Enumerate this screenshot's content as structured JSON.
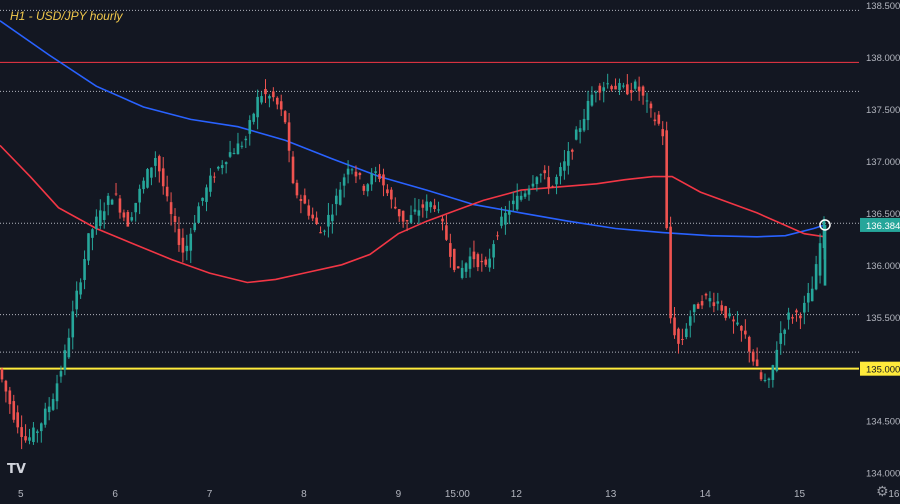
{
  "chart_data": {
    "type": "candlestick",
    "title": "H1 - USD/JPY hourly",
    "x_ticks": [
      {
        "label": "5",
        "day": 5
      },
      {
        "label": "6",
        "day": 6
      },
      {
        "label": "7",
        "day": 7
      },
      {
        "label": "8",
        "day": 8
      },
      {
        "label": "9",
        "day": 9
      },
      {
        "label": "15:00",
        "day": 9.625
      },
      {
        "label": "12",
        "day": 10.25
      },
      {
        "label": "13",
        "day": 11.25
      },
      {
        "label": "14",
        "day": 12.25
      },
      {
        "label": "15",
        "day": 13.25
      },
      {
        "label": "16",
        "day": 14.25
      }
    ],
    "y_ticks": [
      134.0,
      134.5,
      135.0,
      135.5,
      136.0,
      136.5,
      137.0,
      137.5,
      138.0,
      138.5
    ],
    "ylim": [
      133.88,
      138.55
    ],
    "xlim": [
      4.78,
      13.88
    ],
    "y_tick_labels": [
      "134.000",
      "134.500",
      "135.000",
      "135.500",
      "136.000",
      "136.500",
      "137.000",
      "137.500",
      "138.000",
      "138.500"
    ],
    "horizontal_lines": [
      {
        "name": "resistance",
        "value": 137.95,
        "color": "#f23645",
        "style": "solid"
      },
      {
        "name": "support",
        "value": 135.0,
        "color": "#ffeb3b",
        "style": "solid",
        "label": "135.000"
      },
      {
        "name": "level-138.45",
        "value": 138.45,
        "color": "#b2b5be",
        "style": "dotted"
      },
      {
        "name": "level-137.67",
        "value": 137.67,
        "color": "#b2b5be",
        "style": "dotted"
      },
      {
        "name": "level-136.40",
        "value": 136.4,
        "color": "#b2b5be",
        "style": "dotted"
      },
      {
        "name": "level-135.52",
        "value": 135.52,
        "color": "#b2b5be",
        "style": "dotted"
      },
      {
        "name": "level-135.16",
        "value": 135.16,
        "color": "#b2b5be",
        "style": "dotted"
      }
    ],
    "last_price": {
      "value": 136.384,
      "label": "136.384",
      "color": "#26a69a"
    },
    "candle_colors": {
      "up": "#26a69a",
      "down": "#ef5350"
    },
    "candle_keyframes": [
      [
        4.78,
        135.0
      ],
      [
        4.95,
        134.55
      ],
      [
        5.08,
        134.3
      ],
      [
        5.2,
        134.42
      ],
      [
        5.35,
        134.7
      ],
      [
        5.48,
        135.1
      ],
      [
        5.6,
        135.65
      ],
      [
        5.75,
        136.3
      ],
      [
        5.9,
        136.55
      ],
      [
        6.0,
        136.7
      ],
      [
        6.15,
        136.4
      ],
      [
        6.3,
        136.75
      ],
      [
        6.45,
        137.05
      ],
      [
        6.6,
        136.5
      ],
      [
        6.75,
        136.1
      ],
      [
        6.9,
        136.55
      ],
      [
        7.05,
        136.85
      ],
      [
        7.2,
        137.05
      ],
      [
        7.4,
        137.2
      ],
      [
        7.55,
        137.65
      ],
      [
        7.7,
        137.6
      ],
      [
        7.82,
        137.4
      ],
      [
        7.9,
        136.75
      ],
      [
        8.05,
        136.55
      ],
      [
        8.2,
        136.3
      ],
      [
        8.35,
        136.6
      ],
      [
        8.5,
        137.0
      ],
      [
        8.65,
        136.75
      ],
      [
        8.8,
        136.9
      ],
      [
        8.95,
        136.6
      ],
      [
        9.1,
        136.4
      ],
      [
        9.25,
        136.55
      ],
      [
        9.4,
        136.6
      ],
      [
        9.55,
        136.2
      ],
      [
        9.65,
        135.9
      ],
      [
        9.8,
        136.1
      ],
      [
        9.95,
        135.95
      ],
      [
        10.05,
        136.3
      ],
      [
        10.2,
        136.55
      ],
      [
        10.35,
        136.7
      ],
      [
        10.5,
        136.9
      ],
      [
        10.65,
        136.75
      ],
      [
        10.8,
        137.0
      ],
      [
        10.95,
        137.35
      ],
      [
        11.1,
        137.7
      ],
      [
        11.25,
        137.75
      ],
      [
        11.4,
        137.68
      ],
      [
        11.55,
        137.72
      ],
      [
        11.7,
        137.45
      ],
      [
        11.82,
        137.3
      ],
      [
        11.9,
        135.5
      ],
      [
        12.0,
        135.2
      ],
      [
        12.1,
        135.5
      ],
      [
        12.25,
        135.68
      ],
      [
        12.4,
        135.65
      ],
      [
        12.55,
        135.45
      ],
      [
        12.7,
        135.3
      ],
      [
        12.85,
        134.9
      ],
      [
        12.95,
        134.85
      ],
      [
        13.05,
        135.3
      ],
      [
        13.15,
        135.5
      ],
      [
        13.3,
        135.55
      ],
      [
        13.42,
        135.8
      ],
      [
        13.52,
        136.384
      ]
    ],
    "series": [
      {
        "name": "blue-ma",
        "color": "#2962ff",
        "points": [
          [
            4.78,
            138.35
          ],
          [
            5.3,
            138.02
          ],
          [
            5.8,
            137.72
          ],
          [
            6.3,
            137.52
          ],
          [
            6.8,
            137.4
          ],
          [
            7.3,
            137.33
          ],
          [
            7.8,
            137.2
          ],
          [
            8.3,
            137.02
          ],
          [
            8.8,
            136.85
          ],
          [
            9.3,
            136.72
          ],
          [
            9.8,
            136.58
          ],
          [
            10.3,
            136.5
          ],
          [
            10.8,
            136.42
          ],
          [
            11.3,
            136.35
          ],
          [
            11.8,
            136.31
          ],
          [
            12.3,
            136.28
          ],
          [
            12.8,
            136.27
          ],
          [
            13.1,
            136.28
          ],
          [
            13.4,
            136.35
          ],
          [
            13.52,
            136.384
          ]
        ]
      },
      {
        "name": "red-ma",
        "color": "#f23645",
        "points": [
          [
            4.78,
            137.15
          ],
          [
            5.1,
            136.85
          ],
          [
            5.4,
            136.55
          ],
          [
            5.8,
            136.35
          ],
          [
            6.2,
            136.2
          ],
          [
            6.6,
            136.05
          ],
          [
            7.0,
            135.92
          ],
          [
            7.4,
            135.83
          ],
          [
            7.7,
            135.86
          ],
          [
            8.0,
            135.92
          ],
          [
            8.4,
            136.0
          ],
          [
            8.7,
            136.1
          ],
          [
            9.0,
            136.3
          ],
          [
            9.3,
            136.42
          ],
          [
            9.6,
            136.52
          ],
          [
            9.9,
            136.62
          ],
          [
            10.3,
            136.72
          ],
          [
            10.7,
            136.75
          ],
          [
            11.1,
            136.78
          ],
          [
            11.4,
            136.82
          ],
          [
            11.7,
            136.85
          ],
          [
            11.9,
            136.85
          ],
          [
            12.2,
            136.7
          ],
          [
            12.5,
            136.6
          ],
          [
            12.8,
            136.5
          ],
          [
            13.1,
            136.38
          ],
          [
            13.3,
            136.3
          ],
          [
            13.52,
            136.27
          ]
        ]
      }
    ]
  }
}
